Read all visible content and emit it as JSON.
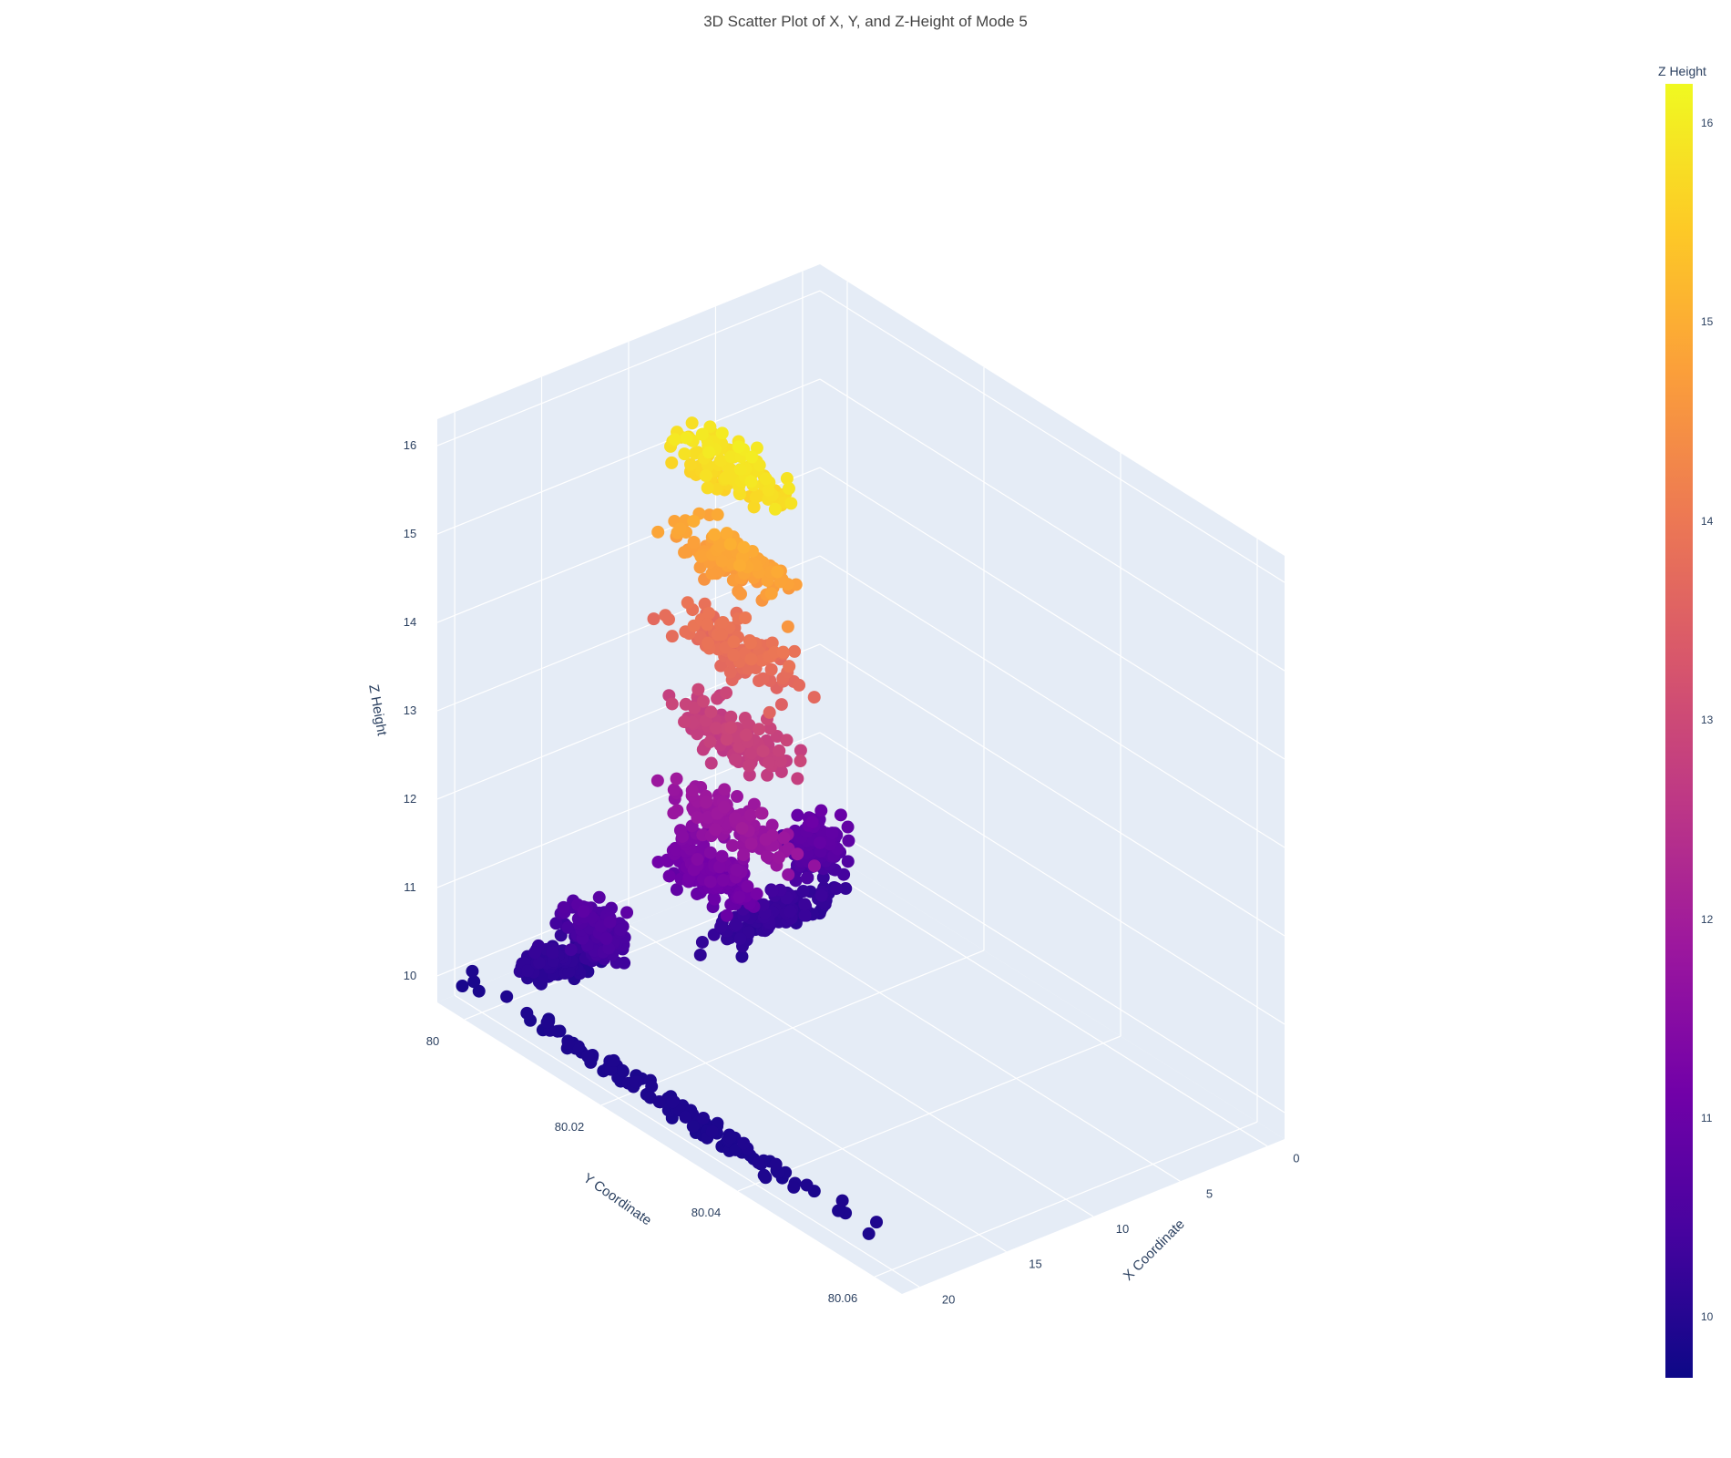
{
  "chart_data": {
    "type": "scatter",
    "title": "3D Scatter Plot of X, Y, and Z-Height of Mode 5",
    "xlabel": "X Coordinate",
    "ylabel": "Y Coordinate",
    "zlabel": "Z Height",
    "x_ticks": [
      "0",
      "5",
      "10",
      "15",
      "20"
    ],
    "y_ticks": [
      "80",
      "80.02",
      "80.04",
      "80.06"
    ],
    "z_ticks": [
      "10",
      "11",
      "12",
      "13",
      "14",
      "15",
      "16"
    ],
    "xlim": [
      -1,
      21
    ],
    "ylim": [
      79.996,
      80.064
    ],
    "zlim": [
      9.7,
      16.3
    ],
    "colorbar": {
      "title": "Z Height",
      "colorscale": "plasma",
      "ticks": [
        "10",
        "11",
        "12",
        "13",
        "14",
        "15",
        "16"
      ],
      "range": [
        9.7,
        16.2
      ]
    },
    "clusters": [
      {
        "x": 19.5,
        "y": 80.027,
        "z": 9.9,
        "spread": [
          1.0,
          0.036,
          0.05
        ]
      },
      {
        "x": 16.5,
        "y": 80.002,
        "z": 10.1,
        "spread": [
          2.5,
          0.004,
          0.15
        ]
      },
      {
        "x": 15.5,
        "y": 80.005,
        "z": 10.5,
        "spread": [
          1.8,
          0.006,
          0.35
        ]
      },
      {
        "x": 6.5,
        "y": 80.009,
        "z": 10.2,
        "spread": [
          5.5,
          0.004,
          0.2
        ]
      },
      {
        "x": 4.0,
        "y": 80.008,
        "z": 10.7,
        "spread": [
          1.8,
          0.004,
          0.4
        ]
      },
      {
        "x": 11.5,
        "y": 80.012,
        "z": 11.2,
        "spread": [
          1.8,
          0.008,
          0.45
        ]
      },
      {
        "x": 11.0,
        "y": 80.014,
        "z": 11.8,
        "spread": [
          2.0,
          0.012,
          0.25
        ]
      },
      {
        "x": 11.0,
        "y": 80.014,
        "z": 12.8,
        "spread": [
          2.0,
          0.012,
          0.3
        ]
      },
      {
        "x": 11.0,
        "y": 80.014,
        "z": 13.8,
        "spread": [
          2.0,
          0.012,
          0.3
        ]
      },
      {
        "x": 11.0,
        "y": 80.014,
        "z": 14.8,
        "spread": [
          2.0,
          0.012,
          0.3
        ]
      },
      {
        "x": 11.0,
        "y": 80.014,
        "z": 15.8,
        "spread": [
          2.0,
          0.012,
          0.3
        ]
      }
    ]
  }
}
